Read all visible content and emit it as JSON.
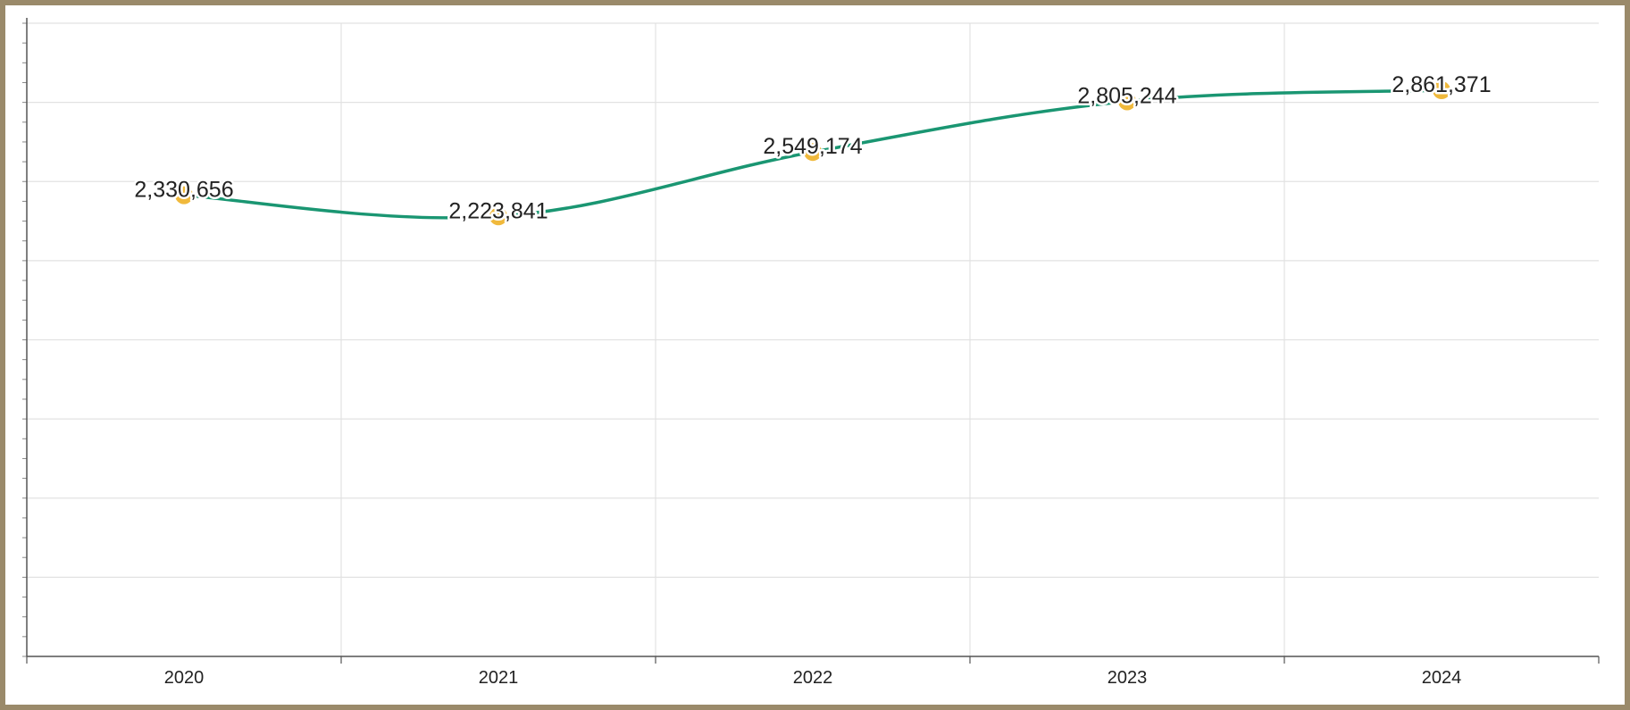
{
  "chart_data": {
    "type": "line",
    "title": "",
    "xlabel": "",
    "ylabel": "",
    "categories": [
      "2020",
      "2021",
      "2022",
      "2023",
      "2024"
    ],
    "series": [
      {
        "values": [
          2330656,
          2223841,
          2549174,
          2805244,
          2861371
        ]
      }
    ],
    "data_labels": [
      "2,330,656",
      "2,223,841",
      "2,549,174",
      "2,805,244",
      "2,861,371"
    ],
    "ylim": [
      0,
      3200000
    ],
    "grid": true,
    "y_tick_labels_visible": false,
    "line_color": "#1a9672",
    "marker_color": "#f0b93c",
    "smooth": true
  }
}
